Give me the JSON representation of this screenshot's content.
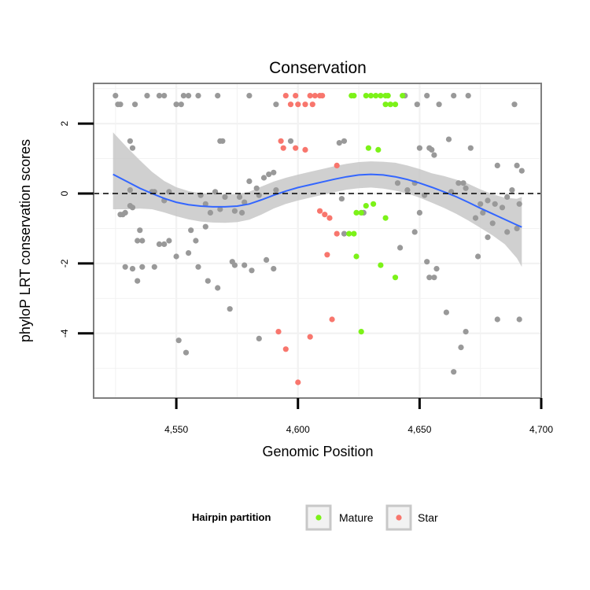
{
  "chart_data": {
    "type": "scatter",
    "title": "Conservation",
    "xlabel": "Genomic Position",
    "ylabel": "phyloP LRT conservation scores",
    "xlim": [
      4516,
      4700
    ],
    "ylim": [
      -5.85,
      3.15
    ],
    "x_ticks": [
      {
        "value": 4550,
        "label": "4,550"
      },
      {
        "value": 4600,
        "label": "4,600"
      },
      {
        "value": 4650,
        "label": "4,650"
      },
      {
        "value": 4700,
        "label": "4,700"
      }
    ],
    "y_ticks": [
      {
        "value": 2,
        "label": "2"
      },
      {
        "value": 0,
        "label": "0"
      },
      {
        "value": -2,
        "label": "-2"
      },
      {
        "value": -4,
        "label": "-4"
      }
    ],
    "grid": true,
    "reference_line": {
      "y": 0,
      "style": "dashed"
    },
    "colors": {
      "other": "#999999",
      "mature": "#7cf218",
      "star": "#f8766d",
      "smooth": "#3366ff",
      "ribbon": "#c8c8c8",
      "panel_border": "#7f7f7f",
      "grid": "#f2f2f2"
    },
    "legend": {
      "title": "Hairpin partition",
      "position": "bottom",
      "entries": [
        {
          "label": "Mature",
          "color": "#7cf218"
        },
        {
          "label": "Star",
          "color": "#f8766d"
        }
      ]
    },
    "series": [
      {
        "group": "other",
        "color": "#999999",
        "points": [
          [
            4525,
            2.8
          ],
          [
            4526,
            2.55
          ],
          [
            4527,
            2.55
          ],
          [
            4533,
            2.55
          ],
          [
            4538,
            2.8
          ],
          [
            4543,
            2.8
          ],
          [
            4545,
            2.8
          ],
          [
            4550,
            2.55
          ],
          [
            4552,
            2.55
          ],
          [
            4553,
            2.8
          ],
          [
            4555,
            2.8
          ],
          [
            4559,
            2.8
          ],
          [
            4567,
            2.8
          ],
          [
            4580,
            2.8
          ],
          [
            4591,
            2.55
          ],
          [
            4644,
            2.8
          ],
          [
            4649,
            2.55
          ],
          [
            4653,
            2.8
          ],
          [
            4658,
            2.55
          ],
          [
            4664,
            2.8
          ],
          [
            4670,
            2.8
          ],
          [
            4689,
            2.55
          ],
          [
            4531,
            1.5
          ],
          [
            4532,
            1.3
          ],
          [
            4568,
            1.5
          ],
          [
            4569,
            1.5
          ],
          [
            4597,
            1.5
          ],
          [
            4617,
            1.45
          ],
          [
            4619,
            1.5
          ],
          [
            4650,
            1.3
          ],
          [
            4654,
            1.3
          ],
          [
            4655,
            1.25
          ],
          [
            4656,
            1.1
          ],
          [
            4662,
            1.55
          ],
          [
            4671,
            1.3
          ],
          [
            4682,
            0.8
          ],
          [
            4690,
            0.8
          ],
          [
            4692,
            0.65
          ],
          [
            4580,
            0.35
          ],
          [
            4583,
            0.15
          ],
          [
            4584,
            -0.05
          ],
          [
            4586,
            0.45
          ],
          [
            4588,
            0.55
          ],
          [
            4590,
            0.6
          ],
          [
            4591,
            0.1
          ],
          [
            4545,
            -0.2
          ],
          [
            4547,
            0.05
          ],
          [
            4540,
            0.05
          ],
          [
            4566,
            0.05
          ],
          [
            4560,
            -0.05
          ],
          [
            4562,
            -0.3
          ],
          [
            4564,
            -0.55
          ],
          [
            4568,
            -0.45
          ],
          [
            4574,
            -0.5
          ],
          [
            4577,
            -0.55
          ],
          [
            4578,
            -0.25
          ],
          [
            4576,
            -0.1
          ],
          [
            4570,
            -0.1
          ],
          [
            4529,
            -0.55
          ],
          [
            4528,
            -0.6
          ],
          [
            4541,
            0.05
          ],
          [
            4531,
            0.1
          ],
          [
            4618,
            -0.15
          ],
          [
            4627,
            -0.55
          ],
          [
            4641,
            0.3
          ],
          [
            4645,
            0.1
          ],
          [
            4648,
            0.3
          ],
          [
            4650,
            -0.55
          ],
          [
            4652,
            -0.05
          ],
          [
            4663,
            0.05
          ],
          [
            4666,
            0.3
          ],
          [
            4668,
            0.3
          ],
          [
            4669,
            0.15
          ],
          [
            4675,
            -0.3
          ],
          [
            4676,
            -0.55
          ],
          [
            4678,
            -0.2
          ],
          [
            4680,
            -0.85
          ],
          [
            4681,
            -0.3
          ],
          [
            4684,
            -0.4
          ],
          [
            4686,
            -0.1
          ],
          [
            4688,
            0.1
          ],
          [
            4691,
            -0.3
          ],
          [
            4673,
            -0.7
          ],
          [
            4535,
            -1.05
          ],
          [
            4534,
            -1.35
          ],
          [
            4536,
            -1.35
          ],
          [
            4545,
            -1.45
          ],
          [
            4547,
            -1.35
          ],
          [
            4550,
            -1.8
          ],
          [
            4556,
            -1.05
          ],
          [
            4558,
            -1.35
          ],
          [
            4555,
            -1.7
          ],
          [
            4562,
            -0.95
          ],
          [
            4559,
            -2.1
          ],
          [
            4573,
            -1.95
          ],
          [
            4574,
            -2.05
          ],
          [
            4578,
            -2.05
          ],
          [
            4581,
            -2.2
          ],
          [
            4587,
            -1.9
          ],
          [
            4590,
            -2.15
          ],
          [
            4619,
            -1.15
          ],
          [
            4642,
            -1.55
          ],
          [
            4648,
            -1.1
          ],
          [
            4653,
            -1.95
          ],
          [
            4654,
            -2.4
          ],
          [
            4656,
            -2.4
          ],
          [
            4657,
            -2.15
          ],
          [
            4674,
            -1.8
          ],
          [
            4678,
            -1.25
          ],
          [
            4686,
            -1.1
          ],
          [
            4690,
            -1.0
          ],
          [
            4529,
            -2.1
          ],
          [
            4532,
            -2.15
          ],
          [
            4534,
            -2.5
          ],
          [
            4536,
            -2.1
          ],
          [
            4541,
            -2.1
          ],
          [
            4543,
            -1.45
          ],
          [
            4563,
            -2.5
          ],
          [
            4567,
            -2.7
          ],
          [
            4527,
            -0.6
          ],
          [
            4532,
            -0.4
          ],
          [
            4531,
            -0.35
          ],
          [
            4572,
            -3.3
          ],
          [
            4551,
            -4.2
          ],
          [
            4554,
            -4.55
          ],
          [
            4584,
            -4.15
          ],
          [
            4661,
            -3.4
          ],
          [
            4682,
            -3.6
          ],
          [
            4691,
            -3.6
          ],
          [
            4669,
            -3.95
          ],
          [
            4667,
            -4.4
          ],
          [
            4664,
            -5.1
          ]
        ]
      },
      {
        "group": "mature",
        "name": "Mature",
        "color": "#7cf218",
        "points": [
          [
            4622,
            2.8
          ],
          [
            4623,
            2.8
          ],
          [
            4628,
            2.8
          ],
          [
            4630,
            2.8
          ],
          [
            4632,
            2.8
          ],
          [
            4634,
            2.8
          ],
          [
            4636,
            2.55
          ],
          [
            4637,
            2.8
          ],
          [
            4638,
            2.55
          ],
          [
            4640,
            2.55
          ],
          [
            4643,
            2.8
          ],
          [
            4636,
            2.8
          ],
          [
            4629,
            1.3
          ],
          [
            4633,
            1.25
          ],
          [
            4624,
            -0.55
          ],
          [
            4626,
            -0.55
          ],
          [
            4628,
            -0.35
          ],
          [
            4631,
            -0.3
          ],
          [
            4636,
            -0.7
          ],
          [
            4621,
            -1.15
          ],
          [
            4623,
            -1.15
          ],
          [
            4624,
            -1.8
          ],
          [
            4634,
            -2.05
          ],
          [
            4640,
            -2.4
          ],
          [
            4626,
            -3.95
          ]
        ]
      },
      {
        "group": "star",
        "name": "Star",
        "color": "#f8766d",
        "points": [
          [
            4595,
            2.8
          ],
          [
            4597,
            2.55
          ],
          [
            4599,
            2.8
          ],
          [
            4600,
            2.55
          ],
          [
            4603,
            2.55
          ],
          [
            4605,
            2.8
          ],
          [
            4606,
            2.55
          ],
          [
            4607,
            2.8
          ],
          [
            4609,
            2.8
          ],
          [
            4610,
            2.8
          ],
          [
            4593,
            1.5
          ],
          [
            4594,
            1.3
          ],
          [
            4599,
            1.3
          ],
          [
            4603,
            1.25
          ],
          [
            4616,
            0.8
          ],
          [
            4609,
            -0.5
          ],
          [
            4611,
            -0.6
          ],
          [
            4613,
            -0.7
          ],
          [
            4616,
            -1.15
          ],
          [
            4612,
            -1.75
          ],
          [
            4614,
            -3.6
          ],
          [
            4592,
            -3.95
          ],
          [
            4595,
            -4.45
          ],
          [
            4605,
            -4.1
          ],
          [
            4600,
            -5.4
          ]
        ]
      }
    ],
    "smooth": {
      "x": [
        4524,
        4530,
        4535,
        4540,
        4545,
        4550,
        4555,
        4560,
        4565,
        4570,
        4575,
        4580,
        4585,
        4590,
        4595,
        4600,
        4605,
        4610,
        4615,
        4620,
        4625,
        4630,
        4635,
        4640,
        4645,
        4650,
        4655,
        4660,
        4665,
        4670,
        4675,
        4680,
        4685,
        4690,
        4692
      ],
      "y": [
        0.55,
        0.33,
        0.15,
        0.0,
        -0.14,
        -0.25,
        -0.32,
        -0.36,
        -0.38,
        -0.38,
        -0.36,
        -0.3,
        -0.18,
        -0.05,
        0.07,
        0.17,
        0.25,
        0.33,
        0.41,
        0.48,
        0.53,
        0.55,
        0.53,
        0.48,
        0.4,
        0.3,
        0.18,
        0.05,
        -0.09,
        -0.25,
        -0.42,
        -0.58,
        -0.74,
        -0.9,
        -0.96
      ],
      "lower": [
        -0.45,
        -0.45,
        -0.43,
        -0.45,
        -0.54,
        -0.65,
        -0.74,
        -0.8,
        -0.83,
        -0.84,
        -0.82,
        -0.75,
        -0.6,
        -0.43,
        -0.3,
        -0.2,
        -0.12,
        -0.04,
        0.04,
        0.11,
        0.15,
        0.17,
        0.14,
        0.08,
        0.0,
        -0.12,
        -0.26,
        -0.41,
        -0.58,
        -0.77,
        -0.98,
        -1.2,
        -1.45,
        -1.85,
        -2.1
      ],
      "upper": [
        1.75,
        1.3,
        0.95,
        0.62,
        0.36,
        0.18,
        0.07,
        0.01,
        -0.02,
        -0.03,
        -0.02,
        0.05,
        0.2,
        0.34,
        0.45,
        0.54,
        0.62,
        0.7,
        0.78,
        0.85,
        0.9,
        0.92,
        0.91,
        0.88,
        0.8,
        0.7,
        0.58,
        0.5,
        0.4,
        0.28,
        0.12,
        -0.02,
        -0.12,
        -0.15,
        -0.1
      ]
    }
  }
}
